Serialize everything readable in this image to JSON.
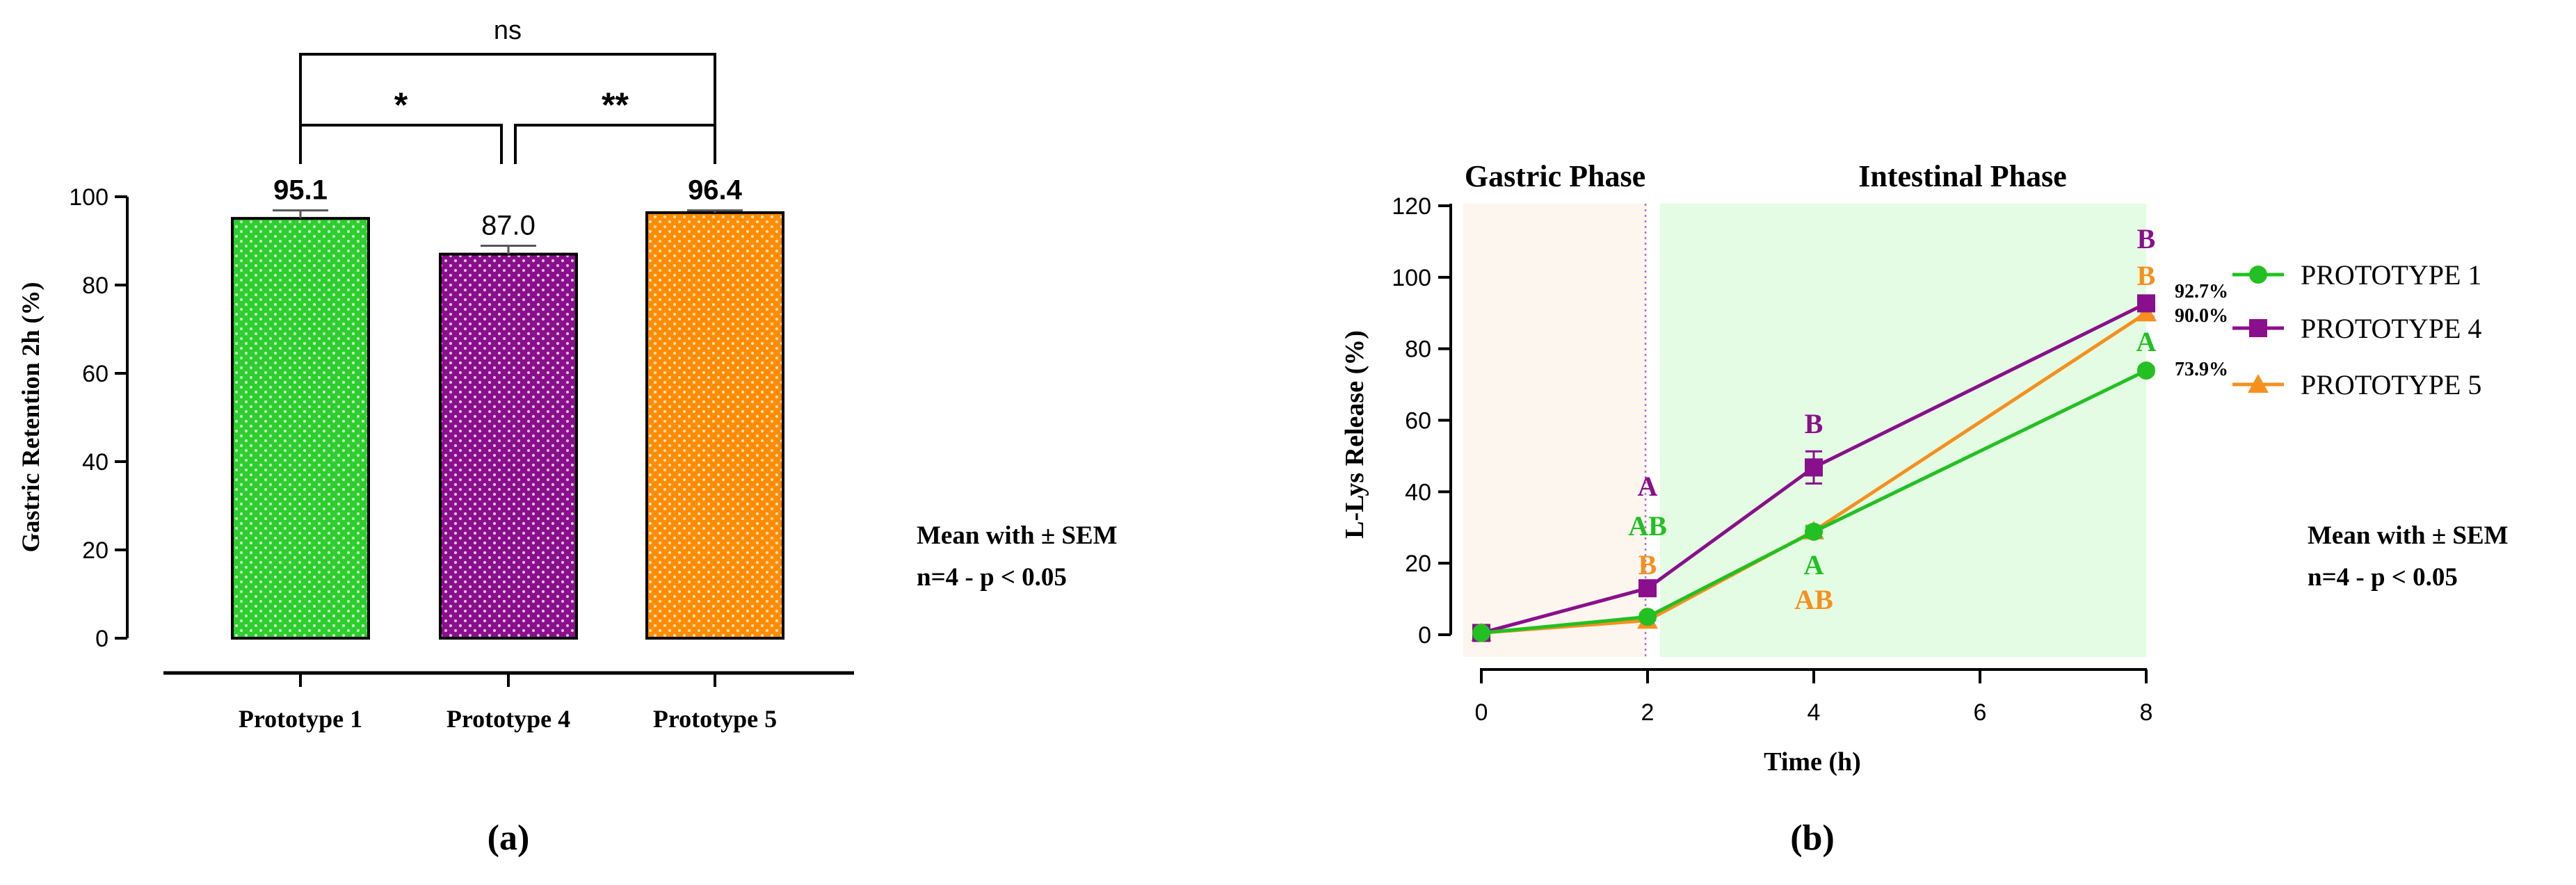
{
  "chart_data": [
    {
      "type": "bar",
      "panel_label": "(a)",
      "ylabel": "Gastric Retention 2h (%)",
      "ylim": [
        0,
        100
      ],
      "yticks": [
        0,
        20,
        40,
        60,
        80,
        100
      ],
      "categories": [
        "Prototype 1",
        "Prototype 4",
        "Prototype 5"
      ],
      "values": [
        95.1,
        87.0,
        96.4
      ],
      "error": [
        1.8,
        1.9,
        0.5
      ],
      "value_labels": [
        "95.1",
        "87.0",
        "96.4"
      ],
      "colors": [
        "#2DCE2D",
        "#8A0F8C",
        "#FF8C00"
      ],
      "pattern": "white dots",
      "significance": [
        {
          "from": 0,
          "to": 1,
          "label": "*"
        },
        {
          "from": 1,
          "to": 2,
          "label": "**"
        },
        {
          "from": 0,
          "to": 2,
          "label": "ns"
        }
      ],
      "note_lines": [
        "Mean with ± SEM",
        "n=4 - p < 0.05"
      ]
    },
    {
      "type": "line",
      "panel_label": "(b)",
      "xlabel": "Time (h)",
      "ylabel": "L-Lys Release (%)",
      "xlim": [
        0,
        8
      ],
      "ylim": [
        0,
        120
      ],
      "xticks": [
        0,
        2,
        4,
        6,
        8
      ],
      "yticks": [
        0,
        20,
        40,
        60,
        80,
        100,
        120
      ],
      "regions": [
        {
          "label": "Gastric Phase",
          "x": [
            0,
            2
          ],
          "color": "#FDF6EF"
        },
        {
          "label": "Intestinal Phase",
          "x": [
            2.15,
            8
          ],
          "color": "#E3FCE3"
        }
      ],
      "x": [
        0,
        2,
        4,
        8
      ],
      "series": [
        {
          "name": "PROTOTYPE 1",
          "marker": "circle",
          "color": "#22C022",
          "values": [
            0.5,
            5.0,
            28.8,
            73.9
          ],
          "error": [
            0.5,
            1.0,
            1.5,
            1.0
          ],
          "letters": [
            "",
            "AB",
            "A",
            "A"
          ],
          "end_label": "73.9%"
        },
        {
          "name": "PROTOTYPE 4",
          "marker": "square",
          "color": "#8A0F8C",
          "values": [
            0.5,
            13.0,
            46.8,
            92.7
          ],
          "error": [
            0.5,
            1.0,
            4.5,
            1.0
          ],
          "letters": [
            "",
            "A",
            "B",
            "B"
          ],
          "end_label": "92.7%"
        },
        {
          "name": "PROTOTYPE 5",
          "marker": "triangle",
          "color": "#F5901E",
          "values": [
            0.5,
            4.0,
            29.0,
            90.0
          ],
          "error": [
            0.5,
            1.5,
            1.5,
            1.0
          ],
          "letters": [
            "",
            "B",
            "AB",
            "B"
          ],
          "end_label": "90.0%"
        }
      ],
      "note_lines": [
        "Mean with ± SEM",
        "n=4 - p < 0.05"
      ]
    }
  ]
}
